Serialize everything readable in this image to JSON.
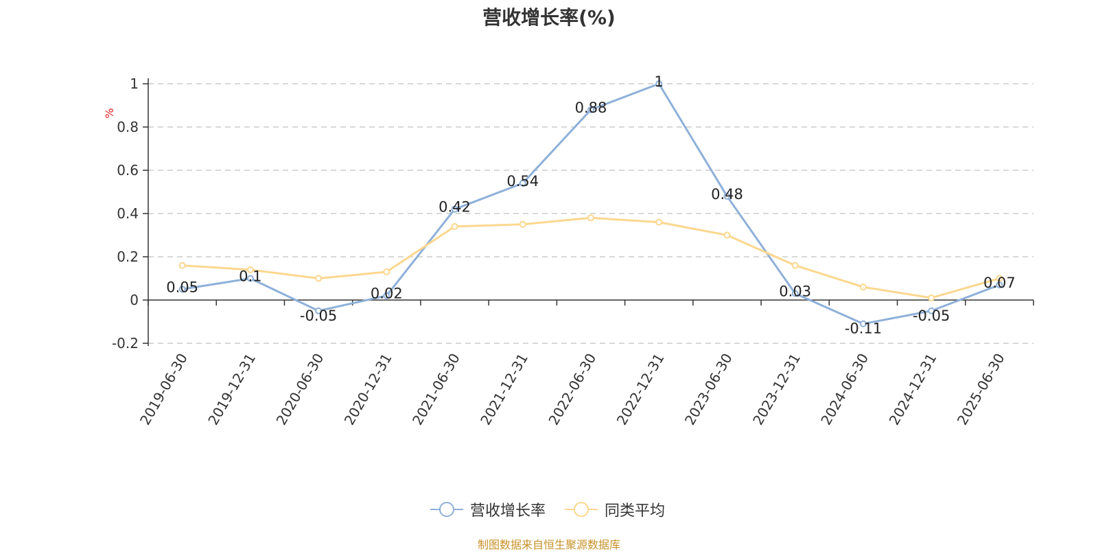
{
  "chart_data": {
    "type": "line",
    "title": "营收增长率(%)",
    "ylabel": "%",
    "ylim": [
      -0.2,
      1
    ],
    "yticks": [
      "-0.2",
      "0",
      "0.2",
      "0.4",
      "0.6",
      "0.8",
      "1"
    ],
    "grid": true,
    "legend_position": "bottom-center",
    "categories": [
      "2019-06-30",
      "2019-12-31",
      "2020-06-30",
      "2020-12-31",
      "2021-06-30",
      "2021-12-31",
      "2022-06-30",
      "2022-12-31",
      "2023-06-30",
      "2023-12-31",
      "2024-06-30",
      "2024-12-31",
      "2025-06-30"
    ],
    "series": [
      {
        "name": "营收增长率",
        "color": "#8eb0d9",
        "values": [
          0.05,
          0.1,
          -0.05,
          0.02,
          0.42,
          0.54,
          0.88,
          1,
          0.48,
          0.03,
          -0.11,
          -0.05,
          0.07
        ],
        "labels": [
          "0.05",
          "0.1",
          "-0.05",
          "0.02",
          "0.42",
          "0.54",
          "0.88",
          "1",
          "0.48",
          "0.03",
          "-0.11",
          "-0.05",
          "0.07"
        ]
      },
      {
        "name": "同类平均",
        "color": "#fbd78f",
        "values": [
          0.16,
          0.14,
          0.1,
          0.13,
          0.34,
          0.35,
          0.38,
          0.36,
          0.3,
          0.16,
          0.06,
          0.01,
          0.1
        ]
      }
    ]
  },
  "source_note": "制图数据来自恒生聚源数据库"
}
